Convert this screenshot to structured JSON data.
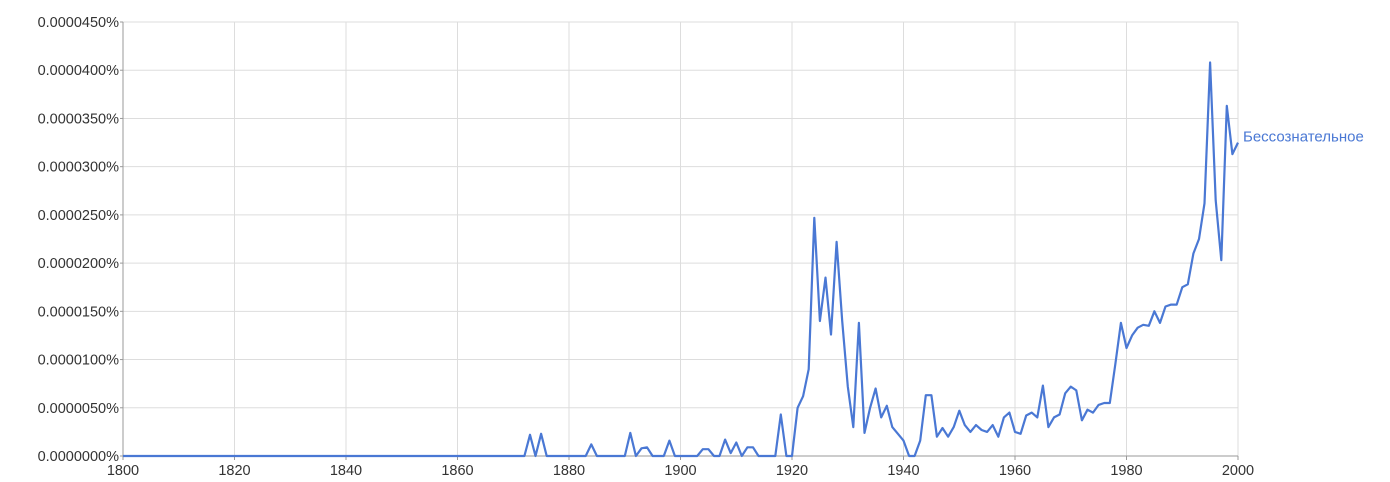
{
  "chart_data": {
    "type": "line",
    "title": "",
    "xlabel": "",
    "ylabel": "",
    "xlim": [
      1800,
      2000
    ],
    "ylim": [
      0,
      4.5e-05
    ],
    "x_ticks": [
      1800,
      1820,
      1840,
      1860,
      1880,
      1900,
      1920,
      1940,
      1960,
      1980,
      2000
    ],
    "x_tick_labels": [
      "1800",
      "1820",
      "1840",
      "1860",
      "1880",
      "1900",
      "1920",
      "1940",
      "1960",
      "1980",
      "2000"
    ],
    "y_ticks": [
      0,
      5e-06,
      1e-05,
      1.5e-05,
      2e-05,
      2.5e-05,
      3e-05,
      3.5e-05,
      4e-05,
      4.5e-05
    ],
    "y_tick_labels": [
      "0.0000000%",
      "0.0000050%",
      "0.0000100%",
      "0.0000150%",
      "0.0000200%",
      "0.0000250%",
      "0.0000300%",
      "0.0000350%",
      "0.0000400%",
      "0.0000450%"
    ],
    "grid": true,
    "legend": "end-of-line label",
    "series": [
      {
        "name": "Бессознательное",
        "color": "#4a78d4",
        "x": [
          1800,
          1872,
          1873,
          1874,
          1875,
          1876,
          1883,
          1884,
          1885,
          1890,
          1891,
          1892,
          1893,
          1894,
          1895,
          1896,
          1897,
          1898,
          1899,
          1903,
          1904,
          1905,
          1906,
          1907,
          1908,
          1909,
          1910,
          1911,
          1912,
          1913,
          1914,
          1917,
          1918,
          1919,
          1920,
          1921,
          1922,
          1923,
          1924,
          1925,
          1926,
          1927,
          1928,
          1929,
          1930,
          1931,
          1932,
          1933,
          1934,
          1935,
          1936,
          1937,
          1938,
          1939,
          1940,
          1941,
          1942,
          1943,
          1944,
          1945,
          1946,
          1947,
          1948,
          1949,
          1950,
          1951,
          1952,
          1953,
          1954,
          1955,
          1956,
          1957,
          1958,
          1959,
          1960,
          1961,
          1962,
          1963,
          1964,
          1965,
          1966,
          1967,
          1968,
          1969,
          1970,
          1971,
          1972,
          1973,
          1974,
          1975,
          1976,
          1977,
          1978,
          1979,
          1980,
          1981,
          1982,
          1983,
          1984,
          1985,
          1986,
          1987,
          1988,
          1989,
          1990,
          1991,
          1992,
          1993,
          1994,
          1995,
          1996,
          1997,
          1998,
          1999,
          2000
        ],
        "y": [
          0,
          0,
          2.2e-06,
          0,
          2.3e-06,
          0,
          0,
          1.2e-06,
          0,
          0,
          2.4e-06,
          0,
          8e-07,
          9e-07,
          0,
          0,
          0,
          1.6e-06,
          0,
          0,
          7e-07,
          7e-07,
          0,
          0,
          1.7e-06,
          3e-07,
          1.4e-06,
          0,
          9e-07,
          9e-07,
          0,
          0,
          4.3e-06,
          0,
          0,
          5e-06,
          6.2e-06,
          9e-06,
          2.47e-05,
          1.4e-05,
          1.85e-05,
          1.26e-05,
          2.22e-05,
          1.4e-05,
          7.2e-06,
          3e-06,
          1.38e-05,
          2.4e-06,
          5e-06,
          7e-06,
          4e-06,
          5.2e-06,
          3e-06,
          2.3e-06,
          1.6e-06,
          0,
          0,
          1.6e-06,
          6.3e-06,
          6.3e-06,
          2e-06,
          2.9e-06,
          2e-06,
          3e-06,
          4.7e-06,
          3.2e-06,
          2.5e-06,
          3.2e-06,
          2.7e-06,
          2.5e-06,
          3.2e-06,
          2e-06,
          4e-06,
          4.5e-06,
          2.5e-06,
          2.3e-06,
          4.2e-06,
          4.5e-06,
          4e-06,
          7.3e-06,
          3e-06,
          4e-06,
          4.3e-06,
          6.5e-06,
          7.2e-06,
          6.8e-06,
          3.7e-06,
          4.8e-06,
          4.5e-06,
          5.3e-06,
          5.5e-06,
          5.5e-06,
          9.5e-06,
          1.38e-05,
          1.12e-05,
          1.25e-05,
          1.33e-05,
          1.36e-05,
          1.35e-05,
          1.5e-05,
          1.38e-05,
          1.55e-05,
          1.57e-05,
          1.57e-05,
          1.75e-05,
          1.78e-05,
          2.1e-05,
          2.25e-05,
          2.62e-05,
          4.08e-05,
          2.65e-05,
          2.03e-05,
          3.63e-05,
          3.13e-05,
          3.25e-05
        ]
      }
    ]
  }
}
